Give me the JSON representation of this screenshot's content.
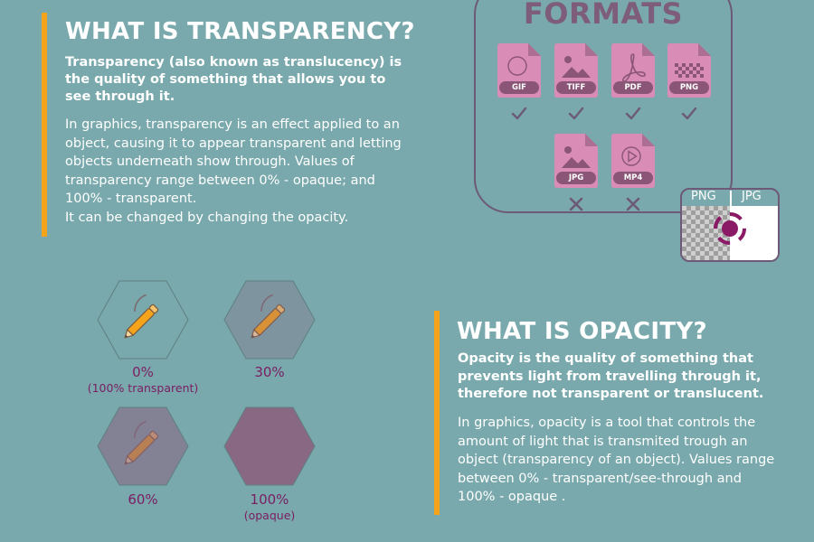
{
  "transparency": {
    "title": "WHAT IS TRANSPARENCY?",
    "lead": "Transparency (also known as translucency) is the quality of something that allows you to see through it.",
    "body_lines": [
      "In graphics, transparency is an effect applied to an",
      "object, causing it to appear transparent and letting",
      "objects underneath show through. Values of",
      "transparency range between 0% - opaque; and",
      "100% - transparent.",
      "It can be changed by changing the opacity."
    ]
  },
  "formats": {
    "title": "FORMATS",
    "files": [
      {
        "label": "GIF",
        "icon": "circle-icon",
        "supported": true
      },
      {
        "label": "TIFF",
        "icon": "image-icon",
        "supported": true
      },
      {
        "label": "PDF",
        "icon": "pdf-icon",
        "supported": true
      },
      {
        "label": "PNG",
        "icon": "checker-icon",
        "supported": true
      },
      {
        "label": "JPG",
        "icon": "image-icon",
        "supported": false
      },
      {
        "label": "MP4",
        "icon": "play-icon",
        "supported": false
      }
    ],
    "preview": {
      "left_label": "PNG",
      "right_label": "JPG"
    }
  },
  "examples": [
    {
      "value": "0%",
      "note": "(100% transparent)",
      "opacity": 0
    },
    {
      "value": "30%",
      "note": "",
      "opacity": 30
    },
    {
      "value": "60%",
      "note": "",
      "opacity": 60
    },
    {
      "value": "100%",
      "note": "(opaque)",
      "opacity": 100
    }
  ],
  "opacity": {
    "title": "WHAT IS OPACITY?",
    "lead": "Opacity is the quality of something that prevents light from travelling through it, therefore not transparent or translucent.",
    "body_lines": [
      "In graphics, opacity is a tool that controls the",
      "amount of light that is transmited trough an",
      "object (transparency of an object). Values range",
      "between 0% - transparent/see-through and",
      "100% - opaque ."
    ]
  },
  "colors": {
    "background": "#79a9ac",
    "accent": "#f5a31a",
    "file_pink": "#d88cb6",
    "file_dark": "#8b5577",
    "label_purple": "#7a1d63",
    "hex_fill": "#8a6482",
    "pencil": "#f5a31a"
  }
}
